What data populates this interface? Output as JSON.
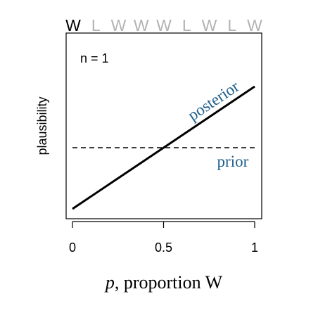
{
  "chart_data": {
    "type": "line",
    "xlabel_italic": "p",
    "xlabel_rest": ", proportion W",
    "ylabel": "plausibility",
    "annotation": "n = 1",
    "xlim": [
      0,
      1
    ],
    "ylim": [
      0,
      2
    ],
    "x_ticks": [
      {
        "value": 0,
        "label": "0"
      },
      {
        "value": 0.5,
        "label": "0.5"
      },
      {
        "value": 1,
        "label": "1"
      }
    ],
    "sequence": [
      {
        "label": "W",
        "highlighted": true
      },
      {
        "label": "L",
        "highlighted": false
      },
      {
        "label": "W",
        "highlighted": false
      },
      {
        "label": "W",
        "highlighted": false
      },
      {
        "label": "W",
        "highlighted": false
      },
      {
        "label": "L",
        "highlighted": false
      },
      {
        "label": "W",
        "highlighted": false
      },
      {
        "label": "L",
        "highlighted": false
      },
      {
        "label": "W",
        "highlighted": false
      }
    ],
    "series": [
      {
        "name": "posterior",
        "style": "solid",
        "color": "#000000",
        "label_color": "#1f5f8b",
        "x": [
          0,
          1
        ],
        "y": [
          0,
          2
        ]
      },
      {
        "name": "prior",
        "style": "dashed",
        "color": "#000000",
        "label_color": "#1f5f8b",
        "x": [
          0,
          1
        ],
        "y": [
          1,
          1
        ]
      }
    ]
  }
}
